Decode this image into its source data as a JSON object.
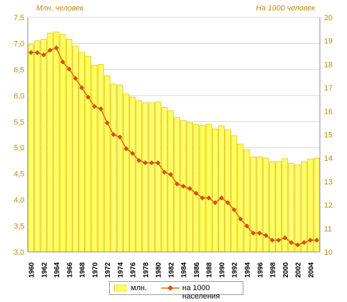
{
  "chart_data": {
    "type": "bar+line",
    "y_left_label": "Млн. человек",
    "y_right_label": "На 1000 человек",
    "y_left_range": [
      3.0,
      7.5
    ],
    "y_right_range": [
      10,
      20
    ],
    "y_left_ticks": [
      "3,0",
      "3,5",
      "4,0",
      "4,5",
      "5,0",
      "5,5",
      "6,0",
      "6,5",
      "7,0",
      "7,5"
    ],
    "y_right_ticks": [
      "10",
      "11",
      "12",
      "13",
      "14",
      "15",
      "16",
      "17",
      "18",
      "19",
      "20"
    ],
    "x_tick_labels": [
      "1960",
      "1962",
      "1964",
      "1966",
      "1968",
      "1970",
      "1972",
      "1974",
      "1976",
      "1978",
      "1980",
      "1982",
      "1984",
      "1986",
      "1988",
      "1990",
      "1992",
      "1994",
      "1996",
      "1998",
      "2000",
      "2002",
      "2004"
    ],
    "years": [
      1960,
      1961,
      1962,
      1963,
      1964,
      1965,
      1966,
      1967,
      1968,
      1969,
      1970,
      1971,
      1972,
      1973,
      1974,
      1975,
      1976,
      1977,
      1978,
      1979,
      1980,
      1981,
      1982,
      1983,
      1984,
      1985,
      1986,
      1987,
      1988,
      1989,
      1990,
      1991,
      1992,
      1993,
      1994,
      1995,
      1996,
      1997,
      1998,
      1999,
      2000,
      2001,
      2002,
      2003,
      2004,
      2005
    ],
    "series": [
      {
        "name": "млн.",
        "type": "bar",
        "axis": "left",
        "values": [
          6.98,
          7.05,
          7.08,
          7.2,
          7.22,
          7.17,
          7.08,
          6.95,
          6.83,
          6.75,
          6.58,
          6.6,
          6.38,
          6.22,
          6.2,
          6.03,
          5.97,
          5.9,
          5.86,
          5.86,
          5.88,
          5.77,
          5.71,
          5.58,
          5.52,
          5.48,
          5.45,
          5.42,
          5.45,
          5.36,
          5.42,
          5.34,
          5.23,
          5.07,
          4.96,
          4.82,
          4.82,
          4.8,
          4.73,
          4.73,
          4.79,
          4.7,
          4.67,
          4.73,
          4.78,
          4.8
        ]
      },
      {
        "name": "на 1000 населения",
        "type": "line",
        "axis": "right",
        "values": [
          18.5,
          18.5,
          18.4,
          18.6,
          18.7,
          18.1,
          17.8,
          17.4,
          17.0,
          16.6,
          16.2,
          16.1,
          15.5,
          15.0,
          14.9,
          14.4,
          14.2,
          13.9,
          13.8,
          13.8,
          13.8,
          13.4,
          13.3,
          12.9,
          12.8,
          12.7,
          12.5,
          12.3,
          12.3,
          12.1,
          12.3,
          12.1,
          11.8,
          11.4,
          11.1,
          10.8,
          10.8,
          10.7,
          10.5,
          10.5,
          10.6,
          10.4,
          10.3,
          10.4,
          10.5,
          10.5
        ]
      }
    ],
    "colors": {
      "bar_fill": "#ffff66",
      "bar_edge": "#e8c200",
      "line": "#e06a00",
      "marker": "#d94f00",
      "left_axis_text": "#c8860a",
      "right_axis_text": "#c8860a",
      "grid": "#d8d8d8"
    },
    "grid": true,
    "legend_position": "bottom"
  }
}
